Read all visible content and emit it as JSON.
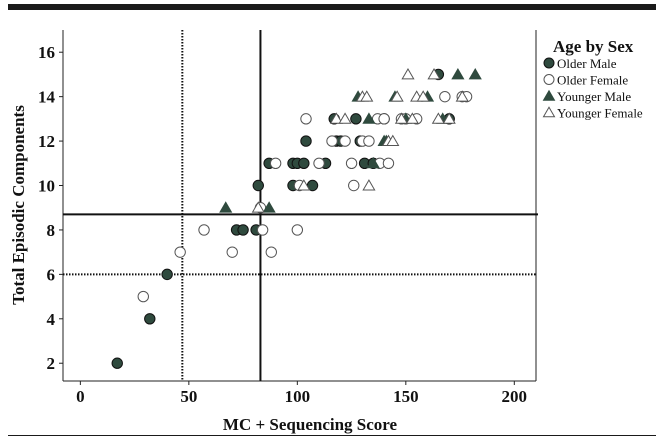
{
  "chart_data": {
    "type": "scatter",
    "xlabel": "MC + Sequencing Score",
    "ylabel": "Total Episodic Components",
    "xlim": [
      -8,
      210
    ],
    "ylim": [
      1.2,
      17
    ],
    "xticks": [
      0,
      50,
      100,
      150,
      200
    ],
    "yticks": [
      2,
      4,
      6,
      8,
      10,
      12,
      14,
      16
    ],
    "grid": false,
    "legend": {
      "title": "Age by Sex",
      "placement": "right"
    },
    "reference_lines": {
      "vertical": [
        {
          "x": 47,
          "style": "dotted"
        },
        {
          "x": 83,
          "style": "solid"
        }
      ],
      "horizontal": [
        {
          "y": 6,
          "style": "dotted"
        },
        {
          "y": 8.7,
          "style": "solid"
        }
      ]
    },
    "series": [
      {
        "name": "Older Male",
        "marker": "circle-filled",
        "color": "#2f4a3e",
        "points": [
          [
            17,
            2
          ],
          [
            32,
            4
          ],
          [
            40,
            6
          ],
          [
            72,
            8
          ],
          [
            75,
            8
          ],
          [
            81,
            8
          ],
          [
            82,
            10
          ],
          [
            87,
            11
          ],
          [
            98,
            11
          ],
          [
            100,
            11
          ],
          [
            103,
            11
          ],
          [
            98,
            10
          ],
          [
            107,
            10
          ],
          [
            104,
            12
          ],
          [
            113,
            11
          ],
          [
            117,
            13
          ],
          [
            118,
            12
          ],
          [
            120,
            12
          ],
          [
            127,
            13
          ],
          [
            129,
            12
          ],
          [
            131,
            11
          ],
          [
            135,
            11
          ],
          [
            140,
            13
          ],
          [
            165,
            15
          ],
          [
            170,
            13
          ]
        ]
      },
      {
        "name": "Older Female",
        "marker": "circle-open",
        "color": "#555555",
        "points": [
          [
            29,
            5
          ],
          [
            46,
            7
          ],
          [
            57,
            8
          ],
          [
            70,
            7
          ],
          [
            83,
            9
          ],
          [
            84,
            8
          ],
          [
            88,
            7
          ],
          [
            90,
            11
          ],
          [
            100,
            8
          ],
          [
            101,
            10
          ],
          [
            104,
            13
          ],
          [
            110,
            11
          ],
          [
            116,
            12
          ],
          [
            122,
            12
          ],
          [
            125,
            11
          ],
          [
            126,
            10
          ],
          [
            130,
            12
          ],
          [
            133,
            12
          ],
          [
            137,
            13
          ],
          [
            138,
            11
          ],
          [
            140,
            13
          ],
          [
            142,
            11
          ],
          [
            148,
            13
          ],
          [
            150,
            13
          ],
          [
            155,
            13
          ],
          [
            168,
            14
          ],
          [
            176,
            14
          ],
          [
            178,
            14
          ]
        ]
      },
      {
        "name": "Younger Male",
        "marker": "triangle-filled",
        "color": "#2f4a3e",
        "points": [
          [
            67,
            9
          ],
          [
            87,
            9
          ],
          [
            128,
            14
          ],
          [
            133,
            13
          ],
          [
            135,
            11
          ],
          [
            140,
            12
          ],
          [
            141,
            12
          ],
          [
            145,
            14
          ],
          [
            150,
            13
          ],
          [
            160,
            14
          ],
          [
            167,
            13
          ],
          [
            174,
            15
          ],
          [
            182,
            15
          ]
        ]
      },
      {
        "name": "Younger Female",
        "marker": "triangle-open",
        "color": "#555555",
        "points": [
          [
            82,
            9
          ],
          [
            103,
            10
          ],
          [
            118,
            13
          ],
          [
            122,
            13
          ],
          [
            130,
            14
          ],
          [
            132,
            14
          ],
          [
            133,
            10
          ],
          [
            142,
            12
          ],
          [
            144,
            12
          ],
          [
            146,
            14
          ],
          [
            148,
            13
          ],
          [
            151,
            15
          ],
          [
            153,
            13
          ],
          [
            155,
            14
          ],
          [
            158,
            14
          ],
          [
            163,
            15
          ],
          [
            165,
            13
          ],
          [
            170,
            13
          ],
          [
            176,
            14
          ]
        ]
      }
    ]
  }
}
